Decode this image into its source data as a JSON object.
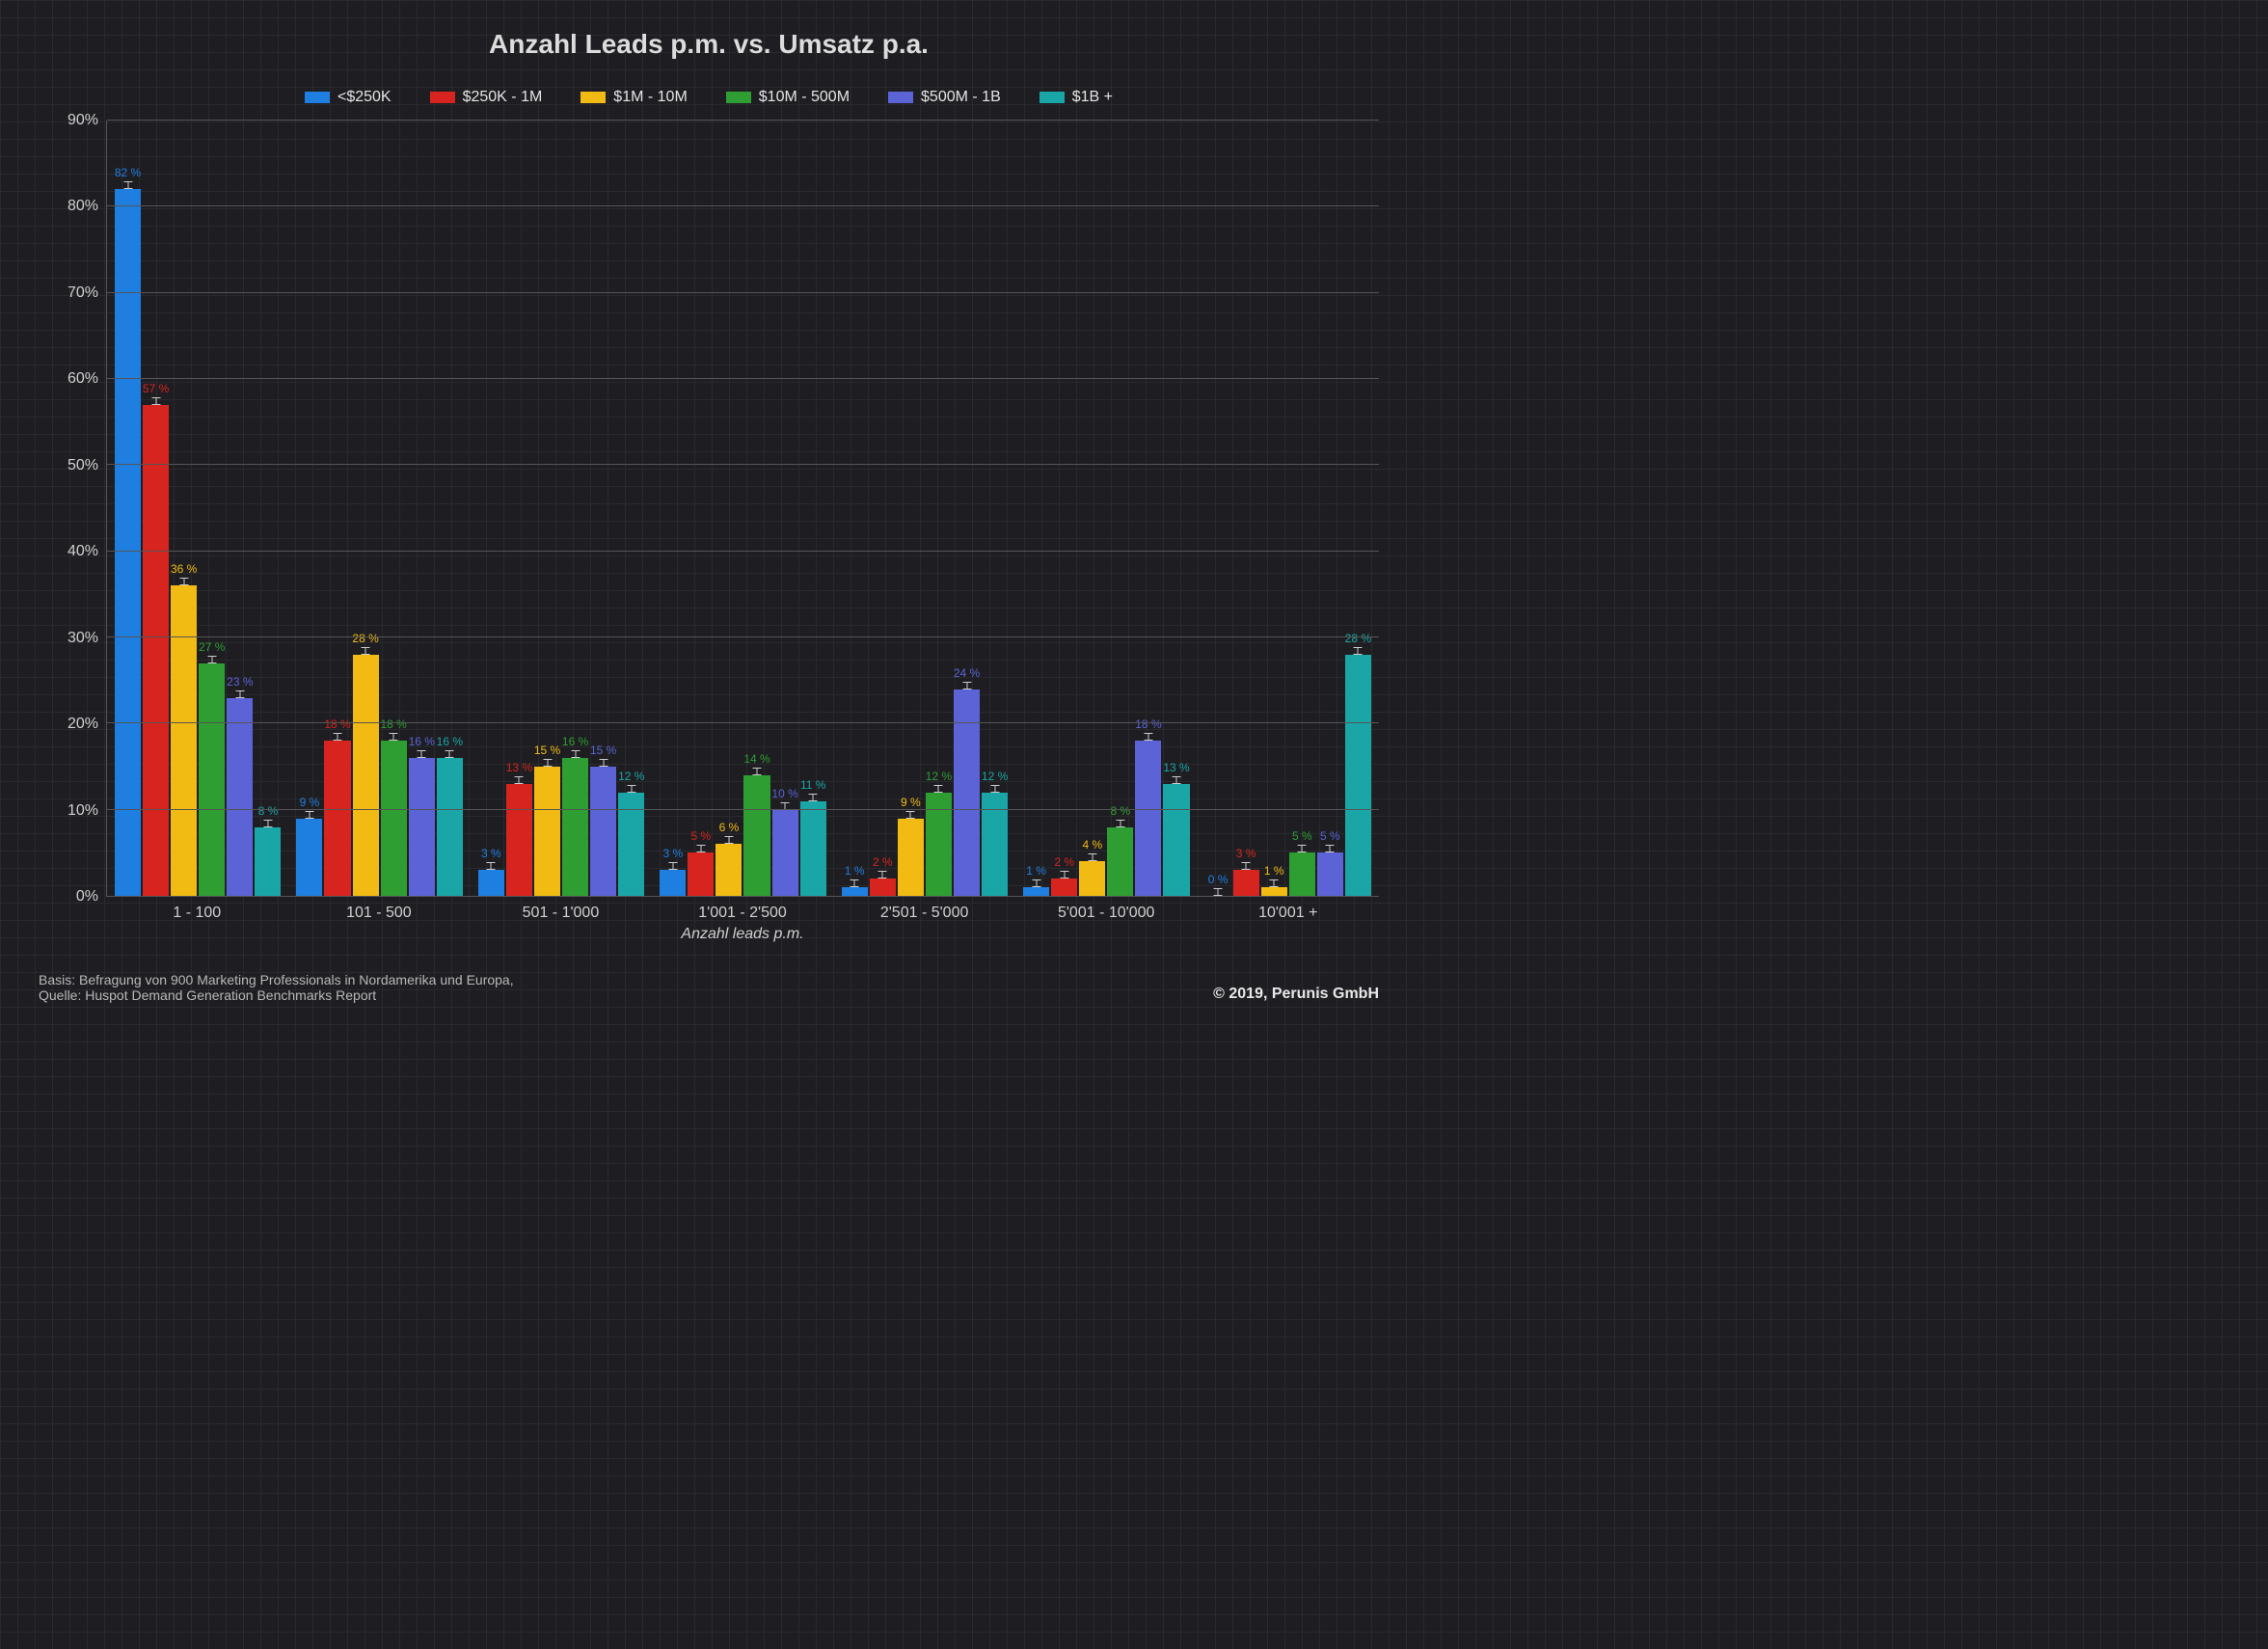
{
  "chart": {
    "type": "grouped-bar",
    "title": "Anzahl Leads p.m. vs. Umsatz p.a.",
    "background_color": "#1e1e22",
    "grid_color": "#555555",
    "text_color": "#d0d0d0",
    "title_fontsize": 28,
    "legend_fontsize": 16,
    "tick_fontsize": 16,
    "barlabel_fontsize": 12,
    "ylim": [
      0,
      90
    ],
    "ytick_step": 10,
    "y_suffix": "%",
    "x_title": "Anzahl leads p.m.",
    "categories": [
      "1 - 100",
      "101 - 500",
      "501 - 1'000",
      "1'001 - 2'500",
      "2'501 - 5'000",
      "5'001 - 10'000",
      "10'001 +"
    ],
    "series": [
      {
        "label": "<$250K",
        "color": "#1f7fe0",
        "values": [
          82,
          9,
          3,
          3,
          1,
          1,
          0
        ],
        "display": [
          "82 %",
          "9 %",
          "3 %",
          "3 %",
          "1 %",
          "1 %",
          "0 %"
        ]
      },
      {
        "label": "$250K - 1M",
        "color": "#d8241e",
        "values": [
          57,
          18,
          13,
          5,
          2,
          2,
          3
        ],
        "display": [
          "57 %",
          "18 %",
          "13 %",
          "5 %",
          "2 %",
          "2 %",
          "3 %"
        ]
      },
      {
        "label": "$1M - 10M",
        "color": "#f2bb13",
        "values": [
          36,
          28,
          15,
          6,
          9,
          4,
          1
        ],
        "display": [
          "36 %",
          "28 %",
          "15 %",
          "6 %",
          "9 %",
          "4 %",
          "1 %"
        ]
      },
      {
        "label": "$10M - 500M",
        "color": "#2e9e32",
        "values": [
          27,
          18,
          16,
          14,
          12,
          8,
          5
        ],
        "display": [
          "27 %",
          "18 %",
          "16 %",
          "14 %",
          "12 %",
          "8 %",
          "5 %"
        ]
      },
      {
        "label": "$500M - 1B",
        "color": "#5c63d6",
        "values": [
          23,
          16,
          15,
          10,
          24,
          18,
          5
        ],
        "display": [
          "23 %",
          "16 %",
          "15 %",
          "10 %",
          "24 %",
          "18 %",
          "5 %"
        ]
      },
      {
        "label": "$1B +",
        "color": "#1aa6a6",
        "values": [
          8,
          16,
          12,
          11,
          12,
          13,
          28
        ],
        "display": [
          "8 %",
          "16 %",
          "12 %",
          "11 %",
          "12 %",
          "13 %",
          "28 %"
        ]
      }
    ]
  },
  "footer": {
    "line1": "Basis: Befragung von 900 Marketing Professionals in Nordamerika und Europa,",
    "line2": "Quelle: Huspot Demand Generation Benchmarks Report",
    "right": "© 2019, Perunis GmbH"
  }
}
